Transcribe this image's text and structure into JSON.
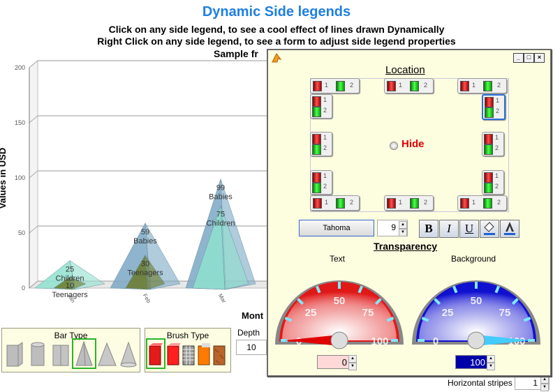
{
  "header": {
    "title": "Dynamic Side legends",
    "line1": "Click on any side legend, to see a cool effect of lines drawn Dynamically",
    "line2": "Right Click on any side legend, to see a form to adjust side legend properties",
    "line3": "Sample fr"
  },
  "chart_data": {
    "type": "bar",
    "bar_shape": "cone/pyramid",
    "ylabel": "Values in USD",
    "xlabel": "Mont",
    "ylim": [
      0,
      200
    ],
    "yticks": [
      "0",
      "50",
      "100",
      "150",
      "200"
    ],
    "categories": [
      "Jan",
      "Feb",
      "Mar"
    ],
    "series": [
      {
        "name": "Children",
        "values": [
          25,
          0,
          75
        ],
        "color": "#8fe0cf"
      },
      {
        "name": "Teenagers",
        "values": [
          10,
          30,
          0
        ],
        "color": "#6b7a2a"
      },
      {
        "name": "Babies",
        "values": [
          0,
          59,
          99
        ],
        "color": "#7aa8c4"
      }
    ],
    "data_labels": [
      {
        "category": "Jan",
        "value": "10",
        "series": "Teenagers"
      },
      {
        "category": "Jan",
        "value": "25",
        "series": "Children"
      },
      {
        "category": "Feb",
        "value": "30",
        "series": "Teenagers"
      },
      {
        "category": "Feb",
        "value": "59",
        "series": "Babies"
      },
      {
        "category": "Mar",
        "value": "75",
        "series": "Children"
      },
      {
        "category": "Mar",
        "value": "99",
        "series": "Babies"
      }
    ],
    "grid": true
  },
  "bottom": {
    "bar_type_title": "Bar Type",
    "brush_type_title": "Brush Type",
    "depth_label": "Depth",
    "depth_value": "10",
    "hstripes_label": "Horizontal stripes",
    "hstripes_value": "1"
  },
  "dialog": {
    "location_title": "Location",
    "legend_item_1": "1",
    "legend_item_2": "2",
    "hide_label": "Hide",
    "font_name": "Tahoma",
    "font_size": "9",
    "bold_label": "B",
    "italic_label": "I",
    "underline_label": "U",
    "transparency_title": "Transparency",
    "text_label": "Text",
    "background_label": "Background",
    "gauge_ticks": [
      "0",
      "25",
      "50",
      "75",
      "100"
    ],
    "text_value": "0",
    "background_value": "100",
    "text_transparency": 0,
    "background_transparency": 100,
    "colors": {
      "text_gauge": "#e01818",
      "background_gauge": "#1010d0",
      "hide": "#e00000",
      "title": "#1f7fe0"
    }
  }
}
